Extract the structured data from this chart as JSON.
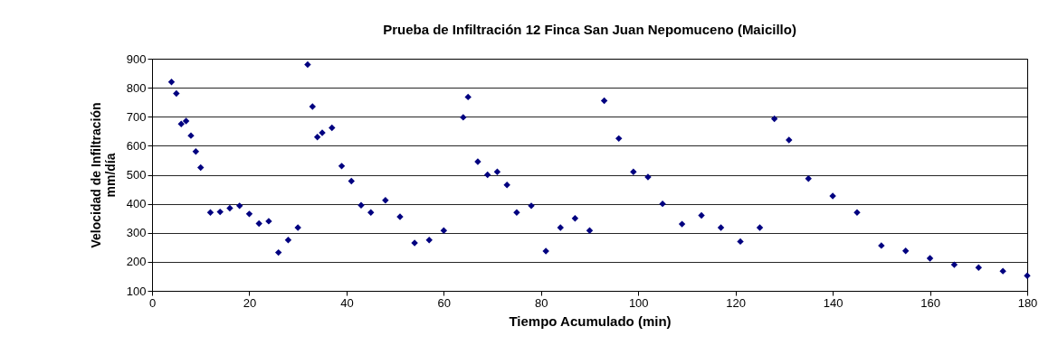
{
  "chart_data": {
    "type": "scatter",
    "title": "Prueba de Infiltración 12 Finca San Juan Nepomuceno (Maicillo)",
    "xlabel": "Tiempo Acumulado (min)",
    "ylabel": "Velocidad de Infiltración\nmm/día",
    "x": [
      4,
      5,
      6,
      7,
      8,
      9,
      10,
      12,
      14,
      16,
      18,
      20,
      22,
      24,
      26,
      28,
      30,
      32,
      33,
      34,
      35,
      37,
      39,
      41,
      43,
      45,
      48,
      51,
      54,
      57,
      60,
      64,
      65,
      67,
      69,
      71,
      73,
      75,
      78,
      81,
      84,
      87,
      90,
      93,
      96,
      99,
      102,
      105,
      109,
      113,
      117,
      121,
      125,
      128,
      131,
      135,
      140,
      145,
      150,
      155,
      160,
      165,
      170,
      175,
      180
    ],
    "series": [
      {
        "color": "#000080",
        "values": [
          820,
          780,
          675,
          685,
          635,
          580,
          525,
          370,
          372,
          385,
          393,
          365,
          332,
          340,
          232,
          275,
          318,
          880,
          735,
          630,
          645,
          662,
          530,
          478,
          395,
          370,
          412,
          355,
          265,
          275,
          308,
          698,
          768,
          545,
          500,
          510,
          465,
          370,
          393,
          237,
          318,
          350,
          308,
          755,
          625,
          510,
          492,
          400,
          330,
          360,
          318,
          270,
          318,
          693,
          620,
          487,
          427,
          370,
          256,
          238,
          212,
          190,
          180,
          168,
          152
        ]
      }
    ],
    "xlim": [
      0,
      180
    ],
    "xticks": [
      0,
      20,
      40,
      60,
      80,
      100,
      120,
      140,
      160,
      180
    ],
    "ylim": [
      100,
      900
    ],
    "yticks": [
      100,
      200,
      300,
      400,
      500,
      600,
      700,
      800,
      900
    ],
    "grid": "y",
    "marker": "diamond"
  }
}
